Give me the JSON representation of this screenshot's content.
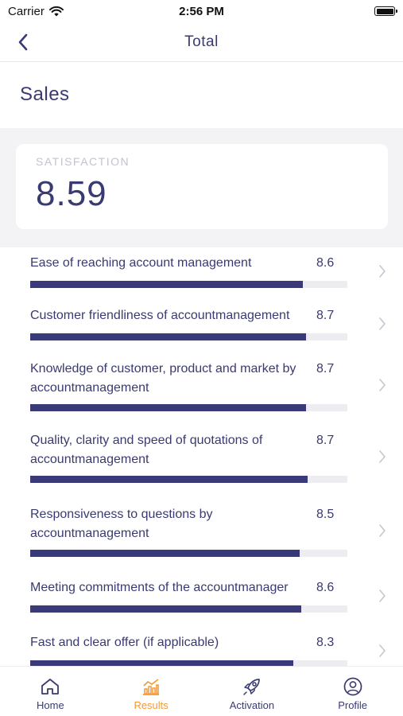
{
  "status_bar": {
    "carrier": "Carrier",
    "time": "2:56 PM"
  },
  "nav": {
    "title": "Total"
  },
  "section": {
    "title": "Sales"
  },
  "score": {
    "label": "SATISFACTION",
    "value": "8.59"
  },
  "items": [
    {
      "label": "Ease of reaching account management",
      "value": "8.6",
      "fraction": 0.86
    },
    {
      "label": "Customer friendliness of accountmanagement",
      "value": "8.7",
      "fraction": 0.87
    },
    {
      "label": "Knowledge of customer, product and market by accountmanagement",
      "value": "8.7",
      "fraction": 0.87
    },
    {
      "label": "Quality, clarity and speed of quotations of accountmanagement",
      "value": "8.7",
      "fraction": 0.875
    },
    {
      "label": "Responsiveness to questions by accountmanagement",
      "value": "8.5",
      "fraction": 0.85
    },
    {
      "label": "Meeting commitments of the accountmanager",
      "value": "8.6",
      "fraction": 0.855
    },
    {
      "label": "Fast and clear offer (if applicable)",
      "value": "8.3",
      "fraction": 0.83
    }
  ],
  "tabs": [
    {
      "label": "Home",
      "icon": "home-icon"
    },
    {
      "label": "Results",
      "icon": "chart-icon",
      "active": true
    },
    {
      "label": "Activation",
      "icon": "rocket-icon"
    },
    {
      "label": "Profile",
      "icon": "profile-icon"
    }
  ],
  "colors": {
    "primary": "#3a3a72",
    "bar": "#3a3a7a",
    "track": "#ececf1",
    "accent": "#f2993a",
    "background": "#f3f3f6"
  }
}
